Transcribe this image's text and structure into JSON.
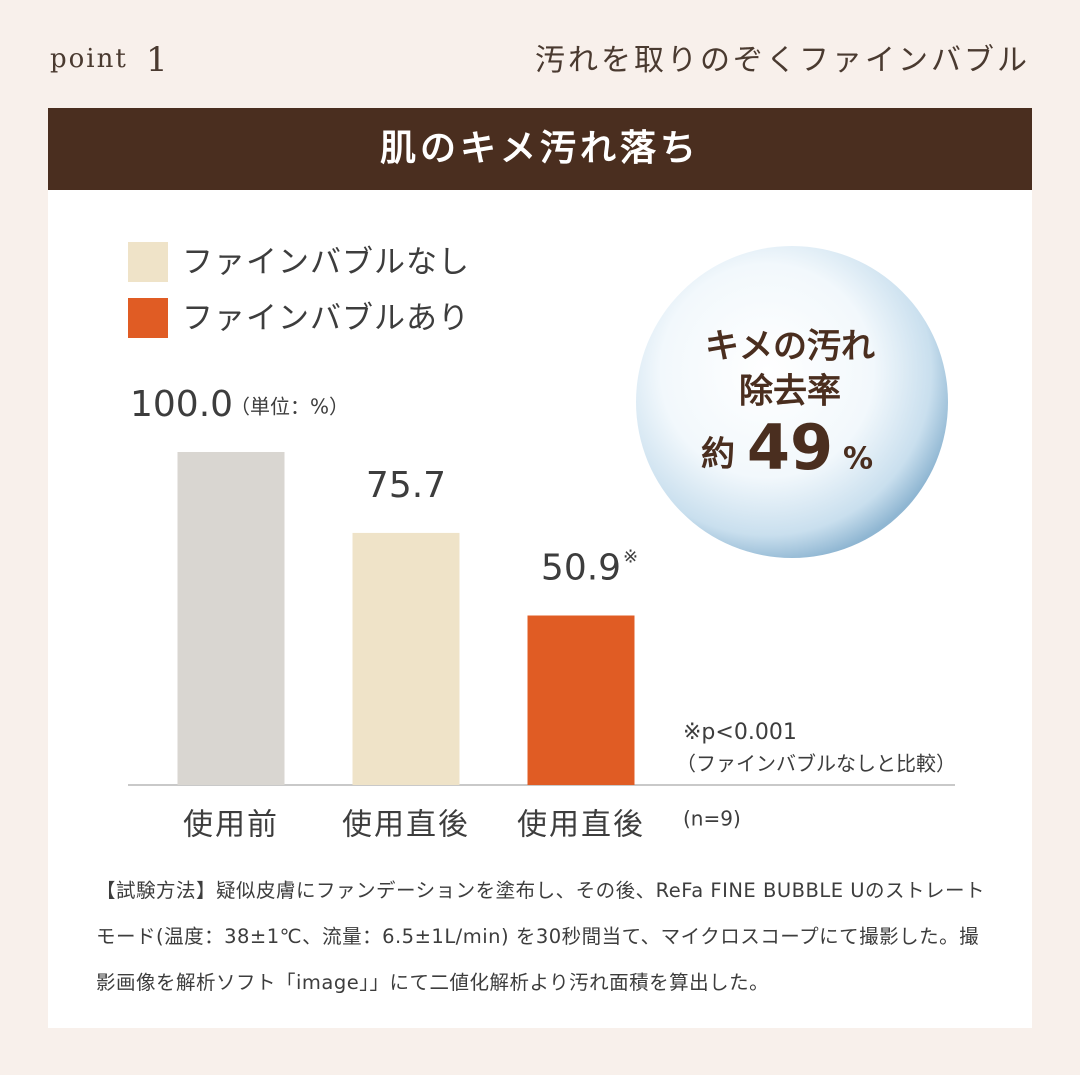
{
  "header": {
    "label": "point",
    "number": "1",
    "title": "汚れを取りのぞくファインバブル"
  },
  "chart_data": {
    "type": "bar",
    "title": "肌のキメ汚れ落ち",
    "unit_note": "（単位：%）",
    "categories": [
      "使用前",
      "使用直後",
      "使用直後"
    ],
    "values": [
      100.0,
      75.7,
      50.9
    ],
    "value_labels": [
      "100.0",
      "75.7",
      "50.9"
    ],
    "colors": [
      "#d9d6d1",
      "#efe3c8",
      "#e05c24"
    ],
    "legend": [
      {
        "name": "ファインバブルなし",
        "color": "#efe3c8"
      },
      {
        "name": "ファインバブルあり",
        "color": "#e05c24"
      }
    ],
    "ylim": [
      0,
      100
    ],
    "significance_mark": "※",
    "significance_note": "※p<0.001",
    "comparison_note": "（ファインバブルなしと比較）",
    "sample_size": "(n=9)"
  },
  "bubble": {
    "line1": "キメの汚れ",
    "line2": "除去率",
    "prefix": "約",
    "value": 49,
    "unit": "%"
  },
  "method": {
    "heading": "【試験方法】",
    "text": "疑似皮膚にファンデーションを塗布し、その後、ReFa FINE BUBBLE Uのストレートモード(温度：38±1℃、流量：6.5±1L/min) を30秒間当て、マイクロスコープにて撮影した。撮影画像を解析ソフト「image」」にて二値化解析より汚れ面積を算出した。"
  }
}
